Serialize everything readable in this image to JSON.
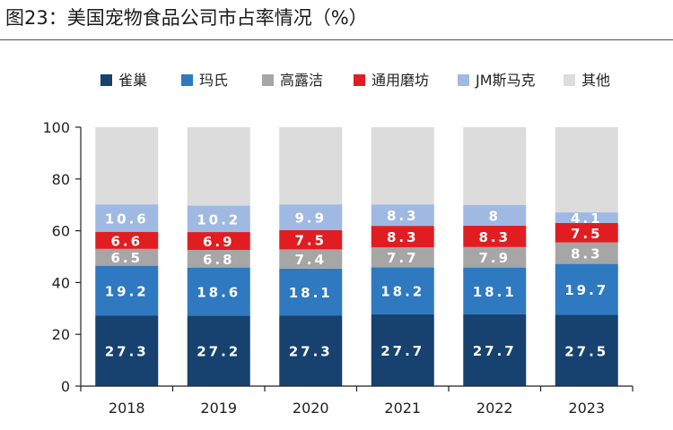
{
  "title": "图23：美国宠物食品公司市占率情况（%）",
  "chart_data": {
    "type": "bar",
    "stacked": true,
    "categories": [
      "2018",
      "2019",
      "2020",
      "2021",
      "2022",
      "2023"
    ],
    "ylim": [
      0,
      100
    ],
    "yticks": [
      "0",
      "20",
      "40",
      "60",
      "80",
      "100"
    ],
    "ytick_values": [
      0,
      20,
      40,
      60,
      80,
      100
    ],
    "legend_position": "top",
    "series": [
      {
        "name": "雀巢",
        "color": "#17416e",
        "label_color": "#ffffff",
        "values": [
          27.3,
          27.2,
          27.3,
          27.7,
          27.7,
          27.5
        ],
        "labels": [
          "27.3",
          "27.2",
          "27.3",
          "27.7",
          "27.7",
          "27.5"
        ]
      },
      {
        "name": "玛氏",
        "color": "#2e79c0",
        "label_color": "#ffffff",
        "values": [
          19.2,
          18.6,
          18.1,
          18.2,
          18.1,
          19.7
        ],
        "labels": [
          "19.2",
          "18.6",
          "18.1",
          "18.2",
          "18.1",
          "19.7"
        ]
      },
      {
        "name": "高露洁",
        "color": "#a6a6a6",
        "label_color": "#ffffff",
        "values": [
          6.5,
          6.8,
          7.4,
          7.7,
          7.9,
          8.3
        ],
        "labels": [
          "6.5",
          "6.8",
          "7.4",
          "7.7",
          "7.9",
          "8.3"
        ]
      },
      {
        "name": "通用磨坊",
        "color": "#e01e22",
        "label_color": "#ffffff",
        "values": [
          6.6,
          6.9,
          7.5,
          8.3,
          8.3,
          7.5
        ],
        "labels": [
          "6.6",
          "6.9",
          "7.5",
          "8.3",
          "8.3",
          "7.5"
        ]
      },
      {
        "name": "JM斯马克",
        "color": "#9fb9e3",
        "label_color": "#ffffff",
        "values": [
          10.6,
          10.2,
          9.9,
          8.3,
          8,
          4.1
        ],
        "labels": [
          "10.6",
          "10.2",
          "9.9",
          "8.3",
          "8",
          "4.1"
        ]
      },
      {
        "name": "其他",
        "color": "#dcdcdc",
        "label_color": "#333333",
        "values": [
          29.8,
          30.3,
          29.8,
          29.8,
          30,
          32.9
        ],
        "labels": [
          "",
          "",
          "",
          "",
          "",
          ""
        ]
      }
    ]
  }
}
